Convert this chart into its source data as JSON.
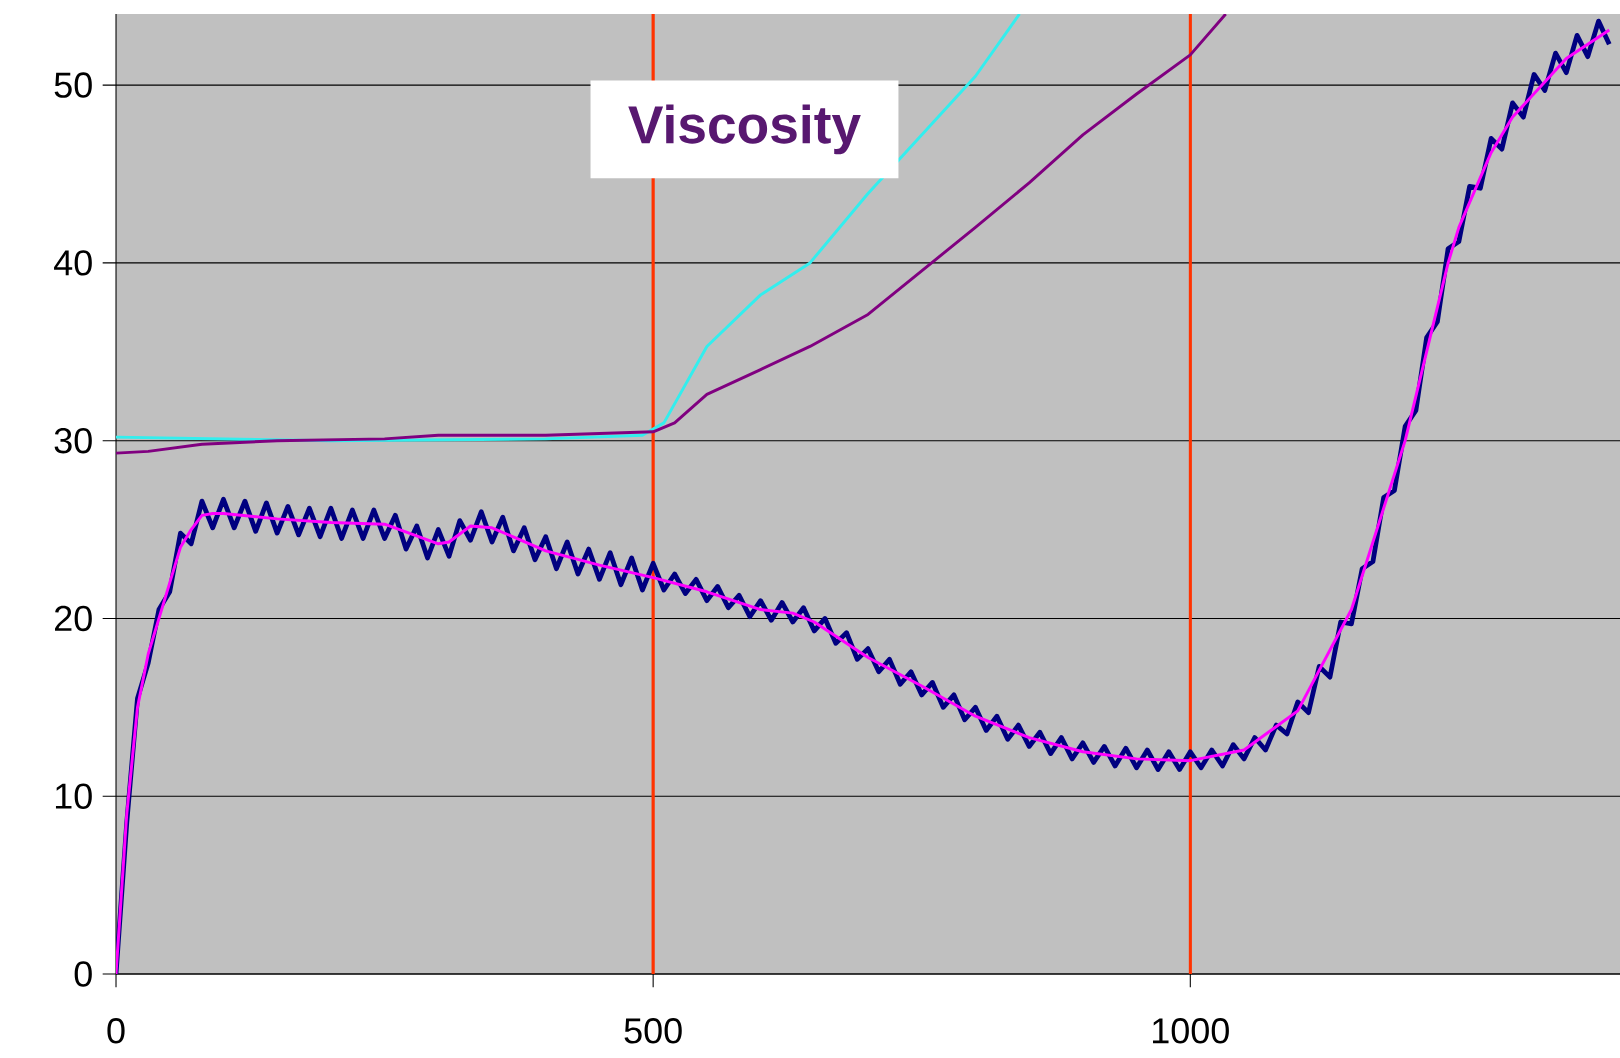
{
  "chart_data": {
    "type": "line",
    "xlim": [
      0,
      1400
    ],
    "ylim": [
      0,
      54
    ],
    "xticks": [
      0,
      500,
      1000
    ],
    "yticks": [
      0,
      10,
      20,
      30,
      40,
      50
    ],
    "grid": "y",
    "annotations": [
      "Viscosity"
    ],
    "ref_lines": [
      {
        "axis": "x",
        "value": 500,
        "color": "#ff3300"
      },
      {
        "axis": "x",
        "value": 1000,
        "color": "#ff3300"
      }
    ],
    "x": [
      0,
      10,
      20,
      30,
      40,
      50,
      60,
      70,
      80,
      90,
      100,
      110,
      120,
      130,
      140,
      150,
      160,
      170,
      180,
      190,
      200,
      210,
      220,
      230,
      240,
      250,
      260,
      270,
      280,
      290,
      300,
      310,
      320,
      330,
      340,
      350,
      360,
      370,
      380,
      390,
      400,
      410,
      420,
      430,
      440,
      450,
      460,
      470,
      480,
      490,
      500,
      510,
      520,
      530,
      540,
      550,
      560,
      570,
      580,
      590,
      600,
      610,
      620,
      630,
      640,
      650,
      660,
      670,
      680,
      690,
      700,
      710,
      720,
      730,
      740,
      750,
      760,
      770,
      780,
      790,
      800,
      810,
      820,
      830,
      840,
      850,
      860,
      870,
      880,
      890,
      900,
      910,
      920,
      930,
      940,
      950,
      960,
      970,
      980,
      990,
      1000,
      1010,
      1020,
      1030,
      1040,
      1050,
      1060,
      1070,
      1080,
      1090,
      1100,
      1110,
      1120,
      1130,
      1140,
      1150,
      1160,
      1170,
      1180,
      1190,
      1200,
      1210,
      1220,
      1230,
      1240,
      1250,
      1260,
      1270,
      1280,
      1290,
      1300,
      1310,
      1320,
      1330,
      1340,
      1350,
      1360,
      1370,
      1380,
      1390
    ],
    "series": [
      {
        "color": "#33eeee",
        "x": [
          0,
          200,
          400,
          490,
          510,
          550,
          600,
          646,
          700,
          800,
          841
        ],
        "values": [
          30.2,
          30.0,
          30.1,
          30.3,
          31.0,
          35.3,
          38.2,
          40.0,
          43.9,
          50.5,
          54.0
        ]
      },
      {
        "color": "#800080",
        "x": [
          0,
          30,
          80,
          150,
          250,
          300,
          400,
          500,
          520,
          550,
          600,
          646,
          700,
          800,
          850,
          900,
          950,
          1000,
          1033
        ],
        "values": [
          29.3,
          29.4,
          29.8,
          30.0,
          30.1,
          30.3,
          30.3,
          30.5,
          31.0,
          32.6,
          34.0,
          35.3,
          37.1,
          42.0,
          44.5,
          47.2,
          49.5,
          51.7,
          54.0
        ]
      },
      {
        "color": "#000080",
        "values": [
          0,
          8.5,
          15.5,
          17.5,
          20.5,
          21.5,
          24.8,
          24.2,
          26.6,
          25.1,
          26.7,
          25.1,
          26.6,
          24.9,
          26.5,
          24.8,
          26.3,
          24.7,
          26.2,
          24.6,
          26.2,
          24.5,
          26.1,
          24.5,
          26.1,
          24.5,
          25.8,
          23.9,
          25.2,
          23.4,
          25.0,
          23.5,
          25.5,
          24.4,
          26.0,
          24.3,
          25.7,
          23.8,
          25.1,
          23.3,
          24.6,
          22.8,
          24.3,
          22.5,
          23.9,
          22.2,
          23.7,
          21.9,
          23.4,
          21.6,
          23.1,
          21.6,
          22.5,
          21.4,
          22.2,
          21.0,
          21.8,
          20.6,
          21.3,
          20.1,
          21.0,
          19.9,
          20.9,
          19.8,
          20.6,
          19.3,
          20.0,
          18.6,
          19.2,
          17.7,
          18.3,
          17.0,
          17.7,
          16.3,
          17.0,
          15.7,
          16.4,
          15.0,
          15.7,
          14.3,
          15.0,
          13.7,
          14.5,
          13.2,
          14.0,
          12.8,
          13.6,
          12.4,
          13.3,
          12.1,
          13.0,
          11.9,
          12.8,
          11.7,
          12.7,
          11.6,
          12.6,
          11.5,
          12.5,
          11.5,
          12.5,
          11.6,
          12.6,
          11.7,
          12.9,
          12.1,
          13.3,
          12.6,
          14.0,
          13.5,
          15.3,
          14.7,
          17.3,
          16.7,
          19.8,
          19.7,
          22.8,
          23.2,
          26.8,
          27.2,
          30.8,
          31.7,
          35.8,
          36.7,
          40.8,
          41.2,
          44.3,
          44.2,
          47.0,
          46.4,
          49.0,
          48.2,
          50.6,
          49.7,
          51.8,
          50.7,
          52.8,
          51.6,
          53.6,
          52.3
        ]
      },
      {
        "color": "#ff00ff",
        "x": [
          0,
          10,
          20,
          30,
          40,
          50,
          60,
          70,
          80,
          90,
          100,
          150,
          200,
          250,
          300,
          310,
          330,
          350,
          400,
          450,
          500,
          550,
          600,
          630,
          650,
          700,
          750,
          800,
          850,
          900,
          950,
          1000,
          1050,
          1100,
          1150,
          1200,
          1220,
          1240,
          1250,
          1280,
          1300,
          1350,
          1390
        ],
        "values": [
          0,
          9,
          15,
          18,
          20,
          22,
          24,
          25,
          25.8,
          25.9,
          25.9,
          25.6,
          25.4,
          25.3,
          24.2,
          24.3,
          25.2,
          25.1,
          23.8,
          23.0,
          22.3,
          21.5,
          20.5,
          20.3,
          19.8,
          17.8,
          16.2,
          14.5,
          13.3,
          12.5,
          12.1,
          12.0,
          12.6,
          14.8,
          20.5,
          30.0,
          35,
          40,
          42,
          46.2,
          48.2,
          51.5,
          53.1
        ]
      }
    ]
  }
}
